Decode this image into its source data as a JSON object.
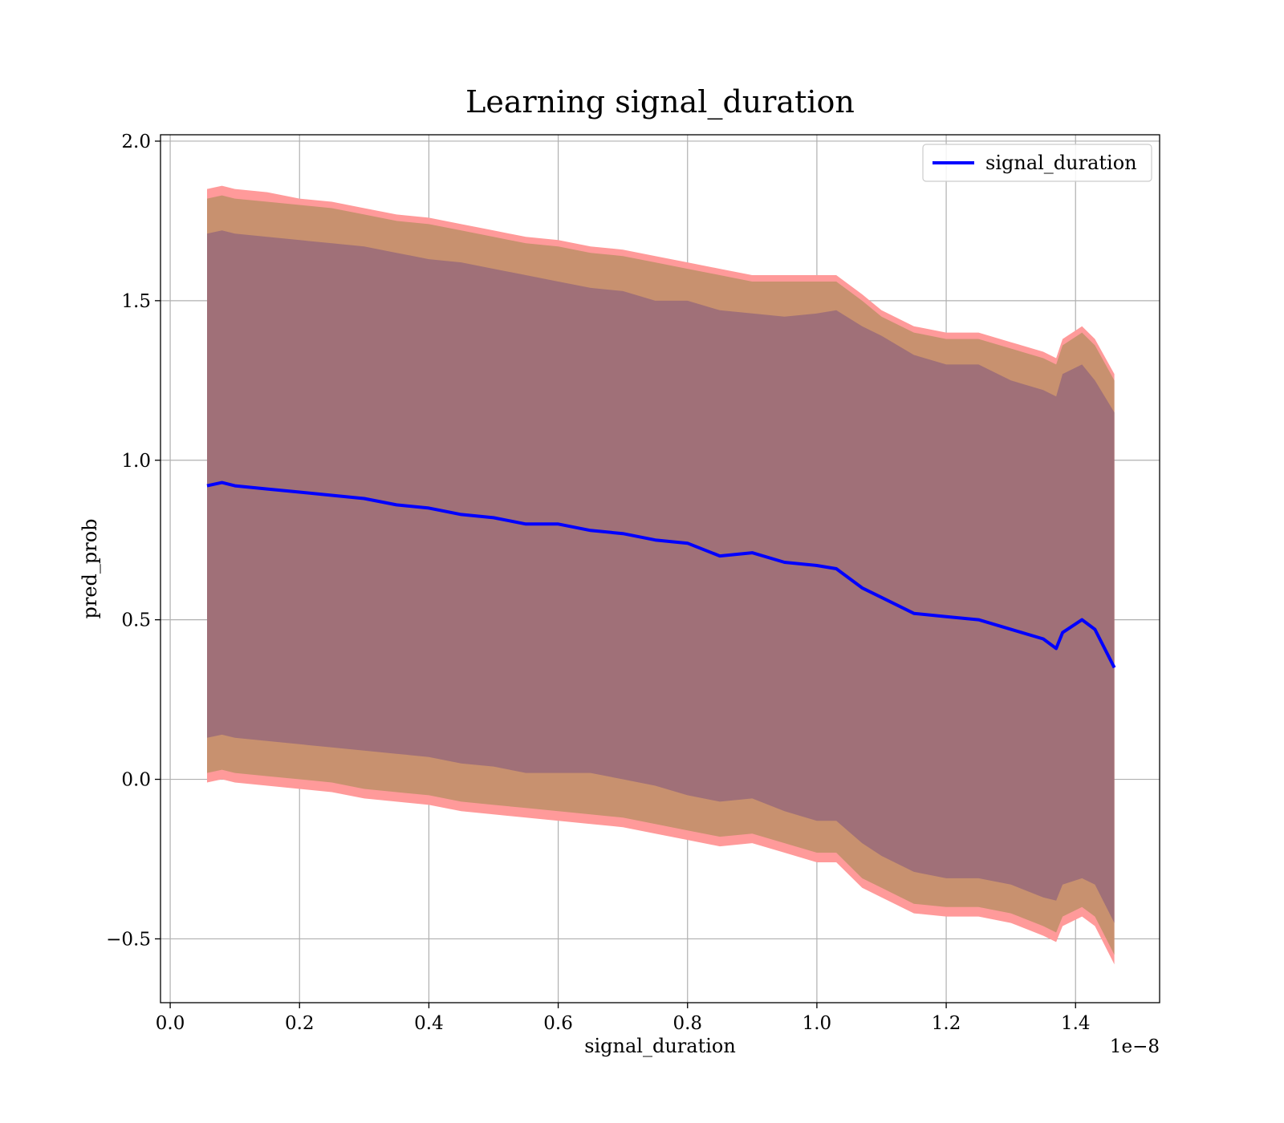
{
  "chart_data": {
    "type": "line",
    "title": "Learning signal_duration",
    "xlabel": "signal_duration",
    "ylabel": "pred_prob",
    "x_offset_label": "1e−8",
    "xlim": [
      -0.015,
      1.53
    ],
    "ylim": [
      -0.7,
      2.02
    ],
    "xticks": [
      0.0,
      0.2,
      0.4,
      0.6,
      0.8,
      1.0,
      1.2,
      1.4
    ],
    "xtick_labels": [
      "0.0",
      "0.2",
      "0.4",
      "0.6",
      "0.8",
      "1.0",
      "1.2",
      "1.4"
    ],
    "yticks": [
      -0.5,
      0.0,
      0.5,
      1.0,
      1.5,
      2.0
    ],
    "ytick_labels": [
      "−0.5",
      "0.0",
      "0.5",
      "1.0",
      "1.5",
      "2.0"
    ],
    "grid": true,
    "legend_position": "top-right",
    "colors": {
      "line": "#0000ff",
      "band_outer": "#ff9a9a",
      "band_middle": "#c8916f",
      "band_inner": "#a07078"
    },
    "series": [
      {
        "name": "signal_duration",
        "x": [
          0.057,
          0.08,
          0.1,
          0.15,
          0.2,
          0.25,
          0.3,
          0.35,
          0.4,
          0.45,
          0.5,
          0.55,
          0.6,
          0.65,
          0.7,
          0.75,
          0.8,
          0.85,
          0.9,
          0.95,
          1.0,
          1.03,
          1.07,
          1.1,
          1.15,
          1.2,
          1.25,
          1.3,
          1.35,
          1.37,
          1.38,
          1.41,
          1.43,
          1.46
        ],
        "y": [
          0.92,
          0.93,
          0.92,
          0.91,
          0.9,
          0.89,
          0.88,
          0.86,
          0.85,
          0.83,
          0.82,
          0.8,
          0.8,
          0.78,
          0.77,
          0.75,
          0.74,
          0.7,
          0.71,
          0.68,
          0.67,
          0.66,
          0.6,
          0.57,
          0.52,
          0.51,
          0.5,
          0.47,
          0.44,
          0.41,
          0.46,
          0.5,
          0.47,
          0.35
        ]
      }
    ],
    "bands": {
      "inner_upper": [
        1.71,
        1.72,
        1.71,
        1.7,
        1.69,
        1.68,
        1.67,
        1.65,
        1.63,
        1.62,
        1.6,
        1.58,
        1.56,
        1.54,
        1.53,
        1.5,
        1.5,
        1.47,
        1.46,
        1.45,
        1.46,
        1.47,
        1.42,
        1.39,
        1.33,
        1.3,
        1.3,
        1.25,
        1.22,
        1.2,
        1.27,
        1.3,
        1.25,
        1.15
      ],
      "inner_lower": [
        0.13,
        0.14,
        0.13,
        0.12,
        0.11,
        0.1,
        0.09,
        0.08,
        0.07,
        0.05,
        0.04,
        0.02,
        0.02,
        0.02,
        0.0,
        -0.02,
        -0.05,
        -0.07,
        -0.06,
        -0.1,
        -0.13,
        -0.13,
        -0.2,
        -0.24,
        -0.29,
        -0.31,
        -0.31,
        -0.33,
        -0.37,
        -0.38,
        -0.33,
        -0.31,
        -0.33,
        -0.45
      ],
      "middle_upper": [
        1.82,
        1.83,
        1.82,
        1.81,
        1.8,
        1.79,
        1.77,
        1.75,
        1.74,
        1.72,
        1.7,
        1.68,
        1.67,
        1.65,
        1.64,
        1.62,
        1.6,
        1.58,
        1.56,
        1.56,
        1.56,
        1.56,
        1.5,
        1.45,
        1.4,
        1.38,
        1.38,
        1.35,
        1.32,
        1.3,
        1.36,
        1.4,
        1.36,
        1.25
      ],
      "middle_lower": [
        0.02,
        0.03,
        0.02,
        0.01,
        0.0,
        -0.01,
        -0.03,
        -0.04,
        -0.05,
        -0.07,
        -0.08,
        -0.09,
        -0.1,
        -0.11,
        -0.12,
        -0.14,
        -0.16,
        -0.18,
        -0.17,
        -0.2,
        -0.23,
        -0.23,
        -0.31,
        -0.34,
        -0.39,
        -0.4,
        -0.4,
        -0.42,
        -0.46,
        -0.48,
        -0.43,
        -0.4,
        -0.43,
        -0.55
      ],
      "outer_upper": [
        1.85,
        1.86,
        1.85,
        1.84,
        1.82,
        1.81,
        1.79,
        1.77,
        1.76,
        1.74,
        1.72,
        1.7,
        1.69,
        1.67,
        1.66,
        1.64,
        1.62,
        1.6,
        1.58,
        1.58,
        1.58,
        1.58,
        1.52,
        1.47,
        1.42,
        1.4,
        1.4,
        1.37,
        1.34,
        1.32,
        1.38,
        1.42,
        1.38,
        1.27
      ],
      "outer_lower": [
        -0.01,
        0.0,
        -0.01,
        -0.02,
        -0.03,
        -0.04,
        -0.06,
        -0.07,
        -0.08,
        -0.1,
        -0.11,
        -0.12,
        -0.13,
        -0.14,
        -0.15,
        -0.17,
        -0.19,
        -0.21,
        -0.2,
        -0.23,
        -0.26,
        -0.26,
        -0.34,
        -0.37,
        -0.42,
        -0.43,
        -0.43,
        -0.45,
        -0.49,
        -0.51,
        -0.46,
        -0.43,
        -0.46,
        -0.58
      ]
    }
  }
}
